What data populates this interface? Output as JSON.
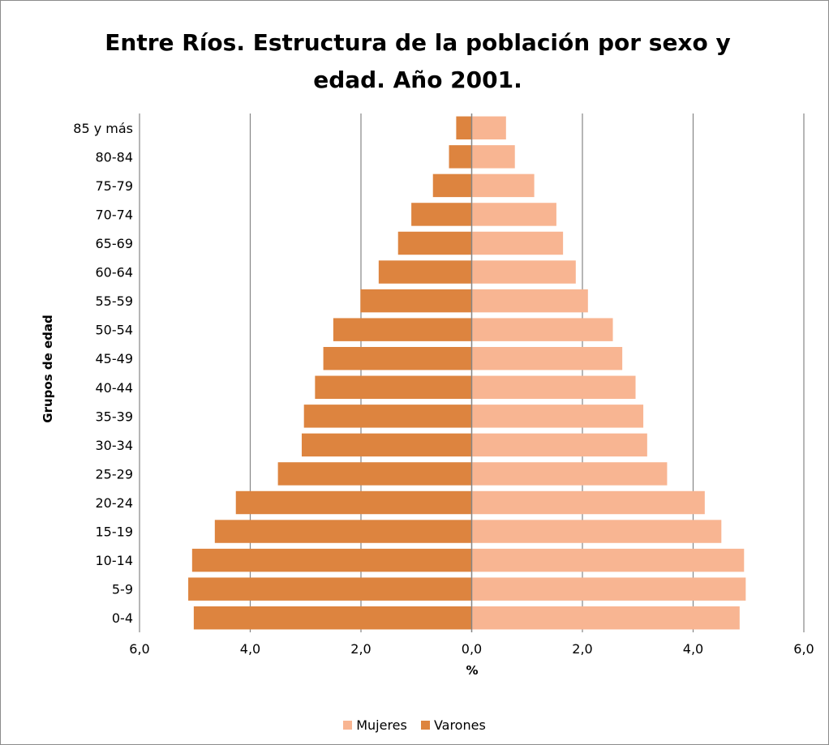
{
  "chart_data": {
    "type": "bar",
    "orientation": "horizontal",
    "title": "Entre Ríos. Estructura de la población por sexo y edad. Año 2001.",
    "xlabel": "%",
    "ylabel": "Grupos de edad",
    "xlim": [
      -6,
      6
    ],
    "xticks": [
      "6,0",
      "4,0",
      "2,0",
      "0,0",
      "2,0",
      "4,0",
      "6,0"
    ],
    "grid": "vertical",
    "legend_position": "bottom",
    "categories": [
      "85 y más",
      "80-84",
      "75-79",
      "70-74",
      "65-69",
      "60-64",
      "55-59",
      "50-54",
      "45-49",
      "40-44",
      "35-39",
      "30-34",
      "25-29",
      "20-24",
      "15-19",
      "10-14",
      "5-9",
      "0-4"
    ],
    "series": [
      {
        "name": "Mujeres",
        "color": "#f8b592",
        "values": [
          0.62,
          0.78,
          1.13,
          1.53,
          1.65,
          1.88,
          2.1,
          2.55,
          2.72,
          2.96,
          3.1,
          3.17,
          3.53,
          4.21,
          4.51,
          4.92,
          4.95,
          4.84
        ]
      },
      {
        "name": "Varones",
        "color": "#dd843f",
        "values": [
          -0.28,
          -0.41,
          -0.7,
          -1.09,
          -1.33,
          -1.68,
          -2.01,
          -2.5,
          -2.68,
          -2.83,
          -3.03,
          -3.07,
          -3.5,
          -4.26,
          -4.64,
          -5.05,
          -5.12,
          -5.02
        ]
      }
    ]
  }
}
